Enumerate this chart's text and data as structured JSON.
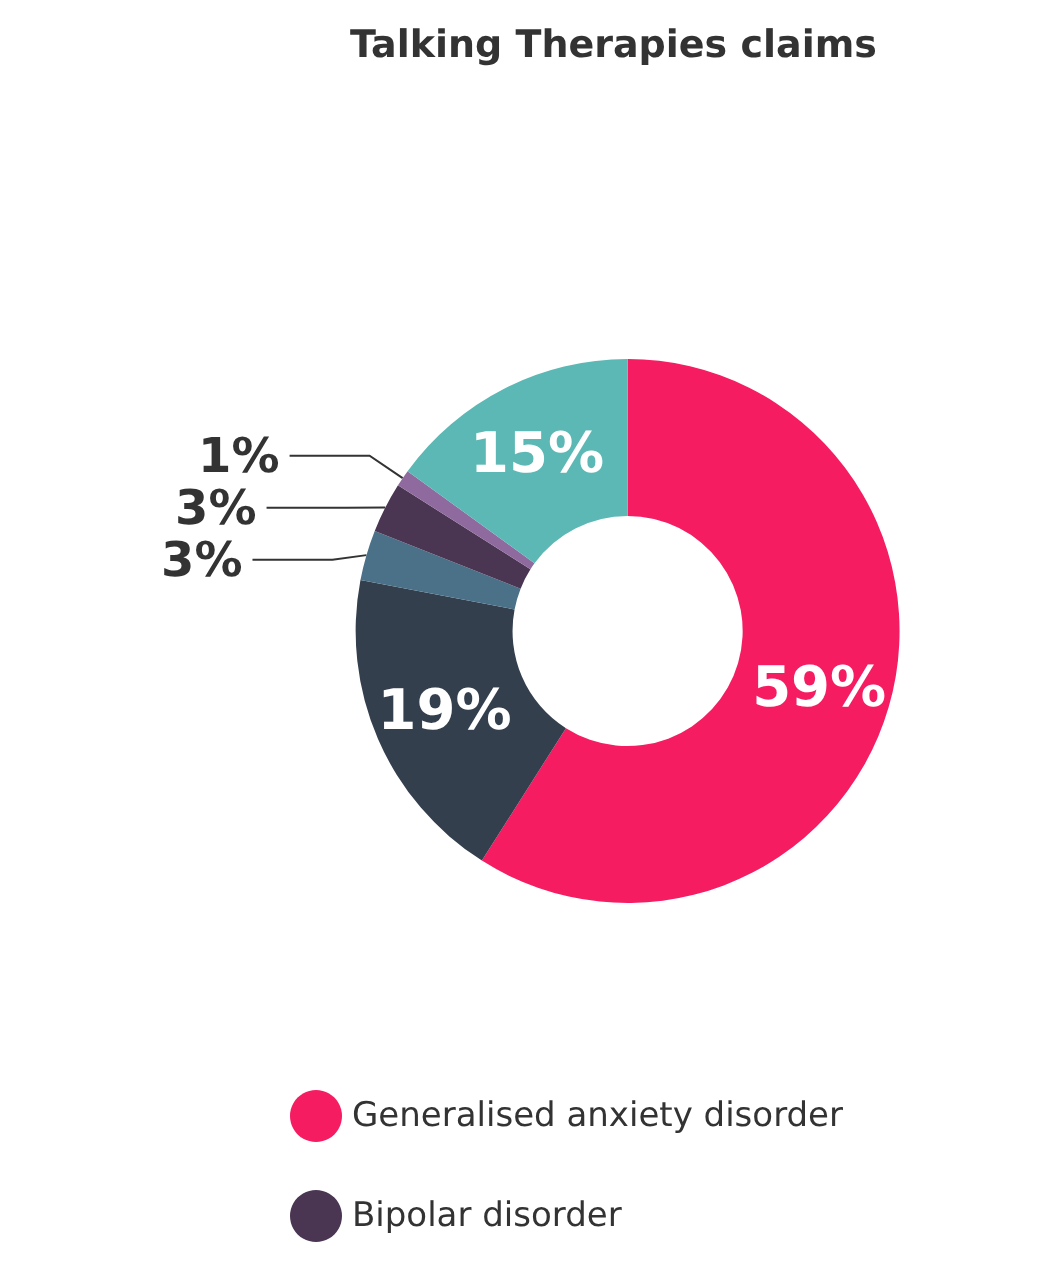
{
  "chart_data": {
    "type": "donut",
    "title": "Talking Therapies claims",
    "categories": [
      "Generalised anxiety disorder",
      null,
      null,
      "Bipolar disorder",
      null,
      null
    ],
    "values": [
      59,
      19,
      3,
      3,
      1,
      15
    ],
    "colors": [
      "#f51c62",
      "#343f4e",
      "#4b7189",
      "#4a3652",
      "#8f6a9f",
      "#5cb8b4"
    ],
    "value_labels": [
      "59%",
      "19%",
      "3%",
      "3%",
      "1%",
      "15%"
    ],
    "legend": "bottom"
  }
}
